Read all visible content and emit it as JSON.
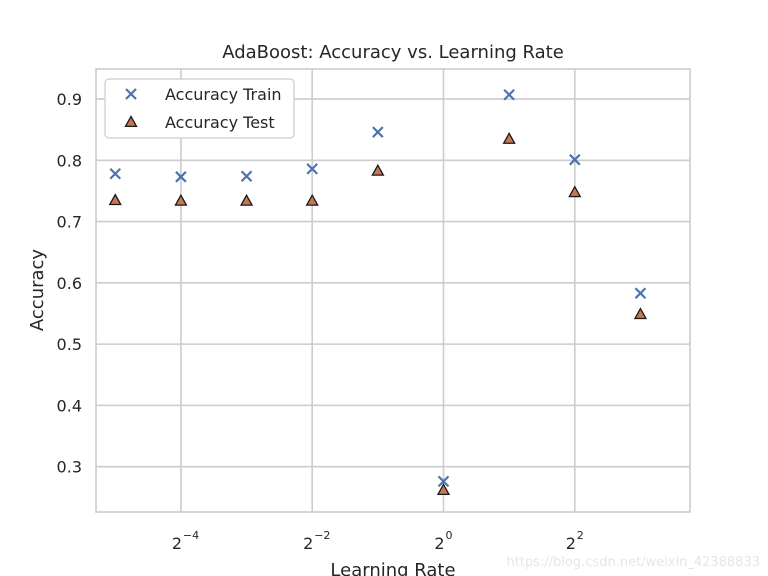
{
  "chart_data": {
    "type": "scatter",
    "title": "AdaBoost: Accuracy vs. Learning Rate",
    "xlabel": "Learning Rate",
    "ylabel": "Accuracy",
    "x_scale": "log2",
    "xlim": [
      0.0255,
      13.5
    ],
    "ylim": [
      0.226,
      0.949
    ],
    "x_ticks": [
      {
        "value": 0.0625,
        "base": "2",
        "exp": "−4"
      },
      {
        "value": 0.25,
        "base": "2",
        "exp": "−2"
      },
      {
        "value": 1,
        "base": "2",
        "exp": "0"
      },
      {
        "value": 4,
        "base": "2",
        "exp": "2"
      }
    ],
    "y_ticks": [
      0.3,
      0.4,
      0.5,
      0.6,
      0.7,
      0.8,
      0.9
    ],
    "y_tick_labels": [
      "0.3",
      "0.4",
      "0.5",
      "0.6",
      "0.7",
      "0.8",
      "0.9"
    ],
    "grid": true,
    "legend_position": "top-left",
    "series": [
      {
        "name": "Accuracy Train",
        "marker": "x",
        "color": "#4c72b0",
        "x": [
          0.03125,
          0.0625,
          0.125,
          0.25,
          0.5,
          1,
          2,
          4,
          8
        ],
        "y": [
          0.778,
          0.773,
          0.774,
          0.786,
          0.846,
          0.276,
          0.907,
          0.801,
          0.583
        ]
      },
      {
        "name": "Accuracy Test",
        "marker": "triangle",
        "color": "#c6774f",
        "edge_color": "#1a1a1a",
        "x": [
          0.03125,
          0.0625,
          0.125,
          0.25,
          0.5,
          1,
          2,
          4,
          8
        ],
        "y": [
          0.735,
          0.734,
          0.734,
          0.734,
          0.783,
          0.262,
          0.835,
          0.748,
          0.549
        ]
      }
    ]
  },
  "watermark": "https://blog.csdn.net/weixin_42388833"
}
